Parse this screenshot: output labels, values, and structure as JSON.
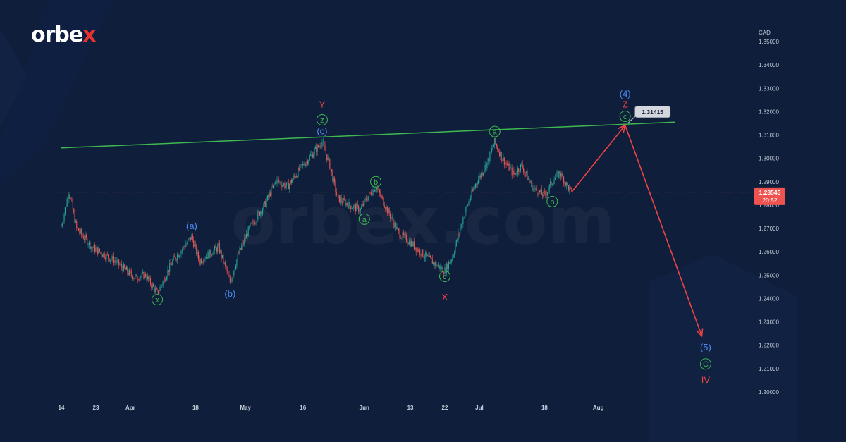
{
  "brand": {
    "logo_text": "orbe",
    "logo_x": "x",
    "watermark": "orbex.com"
  },
  "chart_data": {
    "type": "line",
    "title": "",
    "y_unit_label": "CAD",
    "ylim": [
      1.2,
      1.35
    ],
    "y_ticks": [
      "1.35000",
      "1.34000",
      "1.33000",
      "1.32000",
      "1.31000",
      "1.30000",
      "1.29000",
      "1.28000",
      "1.27000",
      "1.26000",
      "1.25000",
      "1.24000",
      "1.23000",
      "1.22000",
      "1.21000",
      "1.20000"
    ],
    "x_ticks": [
      "14",
      "23",
      "Apr",
      "18",
      "May",
      "16",
      "Jun",
      "13",
      "22",
      "Jul",
      "18",
      "Aug"
    ],
    "grid": false,
    "current_price": {
      "value": "1.28545",
      "countdown": "20:52"
    },
    "target_label": {
      "value": "1.31415"
    },
    "price_path": [
      {
        "date": "Mar 14",
        "price": 1.271
      },
      {
        "date": "Mar 16",
        "price": 1.286
      },
      {
        "date": "Mar 18",
        "price": 1.27
      },
      {
        "date": "Mar 22",
        "price": 1.262
      },
      {
        "date": "Mar 28",
        "price": 1.256
      },
      {
        "date": "Apr 2",
        "price": 1.249
      },
      {
        "date": "Apr 5",
        "price": 1.25
      },
      {
        "date": "Apr 8",
        "price": 1.242
      },
      {
        "date": "Apr 12",
        "price": 1.256
      },
      {
        "date": "Apr 17",
        "price": 1.2665
      },
      {
        "date": "Apr 19",
        "price": 1.256
      },
      {
        "date": "Apr 24",
        "price": 1.262
      },
      {
        "date": "Apr 27",
        "price": 1.247
      },
      {
        "date": "Apr 29",
        "price": 1.258
      },
      {
        "date": "May 2",
        "price": 1.27
      },
      {
        "date": "May 6",
        "price": 1.28
      },
      {
        "date": "May 9",
        "price": 1.2905
      },
      {
        "date": "May 12",
        "price": 1.288
      },
      {
        "date": "May 15",
        "price": 1.295
      },
      {
        "date": "May 17",
        "price": 1.299
      },
      {
        "date": "May 19",
        "price": 1.303
      },
      {
        "date": "May 21",
        "price": 1.307
      },
      {
        "date": "May 23",
        "price": 1.297
      },
      {
        "date": "May 25",
        "price": 1.283
      },
      {
        "date": "May 28",
        "price": 1.28
      },
      {
        "date": "May 31",
        "price": 1.278
      },
      {
        "date": "Jun 2",
        "price": 1.284
      },
      {
        "date": "Jun 4",
        "price": 1.288
      },
      {
        "date": "Jun 7",
        "price": 1.278
      },
      {
        "date": "Jun 10",
        "price": 1.268
      },
      {
        "date": "Jun 13",
        "price": 1.264
      },
      {
        "date": "Jun 17",
        "price": 1.258
      },
      {
        "date": "Jun 20",
        "price": 1.254
      },
      {
        "date": "Jun 22",
        "price": 1.252
      },
      {
        "date": "Jun 24",
        "price": 1.258
      },
      {
        "date": "Jun 27",
        "price": 1.276
      },
      {
        "date": "Jun 30",
        "price": 1.289
      },
      {
        "date": "Jul 3",
        "price": 1.298
      },
      {
        "date": "Jul 5",
        "price": 1.307
      },
      {
        "date": "Jul 7",
        "price": 1.3
      },
      {
        "date": "Jul 10",
        "price": 1.293
      },
      {
        "date": "Jul 12",
        "price": 1.297
      },
      {
        "date": "Jul 15",
        "price": 1.287
      },
      {
        "date": "Jul 18",
        "price": 1.284
      },
      {
        "date": "Jul 20",
        "price": 1.29
      },
      {
        "date": "Jul 22",
        "price": 1.294
      },
      {
        "date": "Jul 24",
        "price": 1.288
      },
      {
        "date": "Jul 25",
        "price": 1.2855
      }
    ],
    "trendline": {
      "from": {
        "date": "Mar 14",
        "price": 1.3045
      },
      "to": {
        "date": "Aug 21",
        "price": 1.3155
      }
    },
    "forecast_path": [
      {
        "date": "Jul 25",
        "price": 1.2855
      },
      {
        "date": "Aug 8",
        "price": 1.3142
      },
      {
        "date": "Aug 28",
        "price": 1.224
      }
    ],
    "wave_labels": [
      {
        "text": "x",
        "style": "circle",
        "color": "#3fb950",
        "date": "Apr 8",
        "price": 1.2395
      },
      {
        "text": "(a)",
        "style": "plain",
        "color": "#4d8df5",
        "date": "Apr 17",
        "price": 1.271
      },
      {
        "text": "(b)",
        "style": "plain",
        "color": "#4d8df5",
        "date": "Apr 27",
        "price": 1.242
      },
      {
        "text": "Y",
        "style": "plain",
        "color": "#ef4444",
        "date": "May 21",
        "price": 1.323
      },
      {
        "text": "z",
        "style": "circle",
        "color": "#3fb950",
        "date": "May 21",
        "price": 1.3165
      },
      {
        "text": "(c)",
        "style": "plain",
        "color": "#4d8df5",
        "date": "May 21",
        "price": 1.3115
      },
      {
        "text": "b",
        "style": "circle",
        "color": "#3fb950",
        "date": "Jun 4",
        "price": 1.29
      },
      {
        "text": "a",
        "style": "circle",
        "color": "#3fb950",
        "date": "Jun 1",
        "price": 1.274
      },
      {
        "text": "c",
        "style": "circle",
        "color": "#3fb950",
        "date": "Jun 22",
        "price": 1.2495
      },
      {
        "text": "X",
        "style": "plain",
        "color": "#ef4444",
        "date": "Jun 22",
        "price": 1.2405
      },
      {
        "text": "a",
        "style": "circle",
        "color": "#3fb950",
        "date": "Jul 5",
        "price": 1.3115
      },
      {
        "text": "b",
        "style": "circle",
        "color": "#3fb950",
        "date": "Jul 20",
        "price": 1.2815
      },
      {
        "text": "(4)",
        "style": "plain",
        "color": "#4d8df5",
        "date": "Aug 8",
        "price": 1.3275
      },
      {
        "text": "Z",
        "style": "plain",
        "color": "#ef4444",
        "date": "Aug 8",
        "price": 1.323
      },
      {
        "text": "c",
        "style": "circle",
        "color": "#3fb950",
        "date": "Aug 8",
        "price": 1.318
      },
      {
        "text": "(5)",
        "style": "plain",
        "color": "#4d8df5",
        "date": "Aug 29",
        "price": 1.219
      },
      {
        "text": "C",
        "style": "circle",
        "color": "#3fb950",
        "date": "Aug 29",
        "price": 1.212
      },
      {
        "text": "IV",
        "style": "plain",
        "color": "#ef4444",
        "date": "Aug 29",
        "price": 1.205
      }
    ],
    "colors": {
      "background": "#0f1e3a",
      "trendline": "#3fb950",
      "forecast": "#ef4444",
      "candle_up": "#26a69a",
      "candle_down": "#ef5350",
      "axis_text": "#c7cfdc"
    }
  }
}
